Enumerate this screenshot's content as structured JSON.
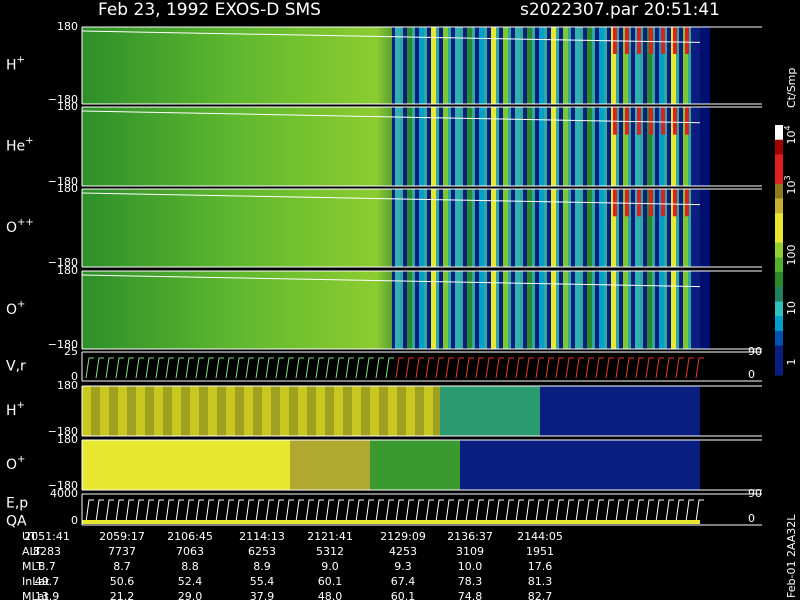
{
  "header": {
    "left": "Feb 23, 1992   EXOS-D SMS",
    "right": "s2022307.par  20:51:41"
  },
  "panels": [
    {
      "label": "H",
      "sup": "+",
      "top": "180",
      "bottom": "−180"
    },
    {
      "label": "He",
      "sup": "+",
      "top": "180",
      "bottom": "−180"
    },
    {
      "label": "O",
      "sup": "++",
      "top": "180",
      "bottom": "−180"
    },
    {
      "label": "O",
      "sup": "+",
      "top": "180",
      "bottom": "−180"
    },
    {
      "label": "V,r",
      "top": "25",
      "bottom": "0",
      "right_top": "90",
      "right_bottom": "0"
    },
    {
      "label": "H",
      "sup": "+",
      "top": "180",
      "bottom": "−180"
    },
    {
      "label": "O",
      "sup": "+",
      "top": "180",
      "bottom": "−180"
    },
    {
      "label": "E,p",
      "label2": "QA",
      "top": "4000",
      "bottom": "0",
      "right_top": "90",
      "right_bottom": "0"
    }
  ],
  "colorbar": {
    "title": "Ct/Smp",
    "ticks": [
      {
        "base": "10",
        "exp": "4"
      },
      {
        "base": "10",
        "exp": "3"
      },
      {
        "base": "100"
      },
      {
        "base": "10"
      },
      {
        "base": "1"
      }
    ]
  },
  "table": {
    "row_labels": [
      "UT",
      "ALT",
      "MLT",
      "InLat",
      "MLat"
    ],
    "rows": [
      [
        "2051:41",
        "2059:17",
        "2106:45",
        "2114:13",
        "2121:41",
        "2129:09",
        "2136:37",
        "2144:05"
      ],
      [
        "8283",
        "7737",
        "7063",
        "6253",
        "5312",
        "4253",
        "3109",
        "1951"
      ],
      [
        "8.7",
        "8.7",
        "8.8",
        "8.9",
        "9.0",
        "9.3",
        "10.0",
        "17.6"
      ],
      [
        "49.7",
        "50.6",
        "52.4",
        "55.4",
        "60.1",
        "67.4",
        "78.3",
        "81.3"
      ],
      [
        "13.9",
        "21.2",
        "29.0",
        "37.9",
        "48.0",
        "60.1",
        "74.8",
        "82.7"
      ]
    ]
  },
  "footer": "Feb-01 2AA32L"
}
